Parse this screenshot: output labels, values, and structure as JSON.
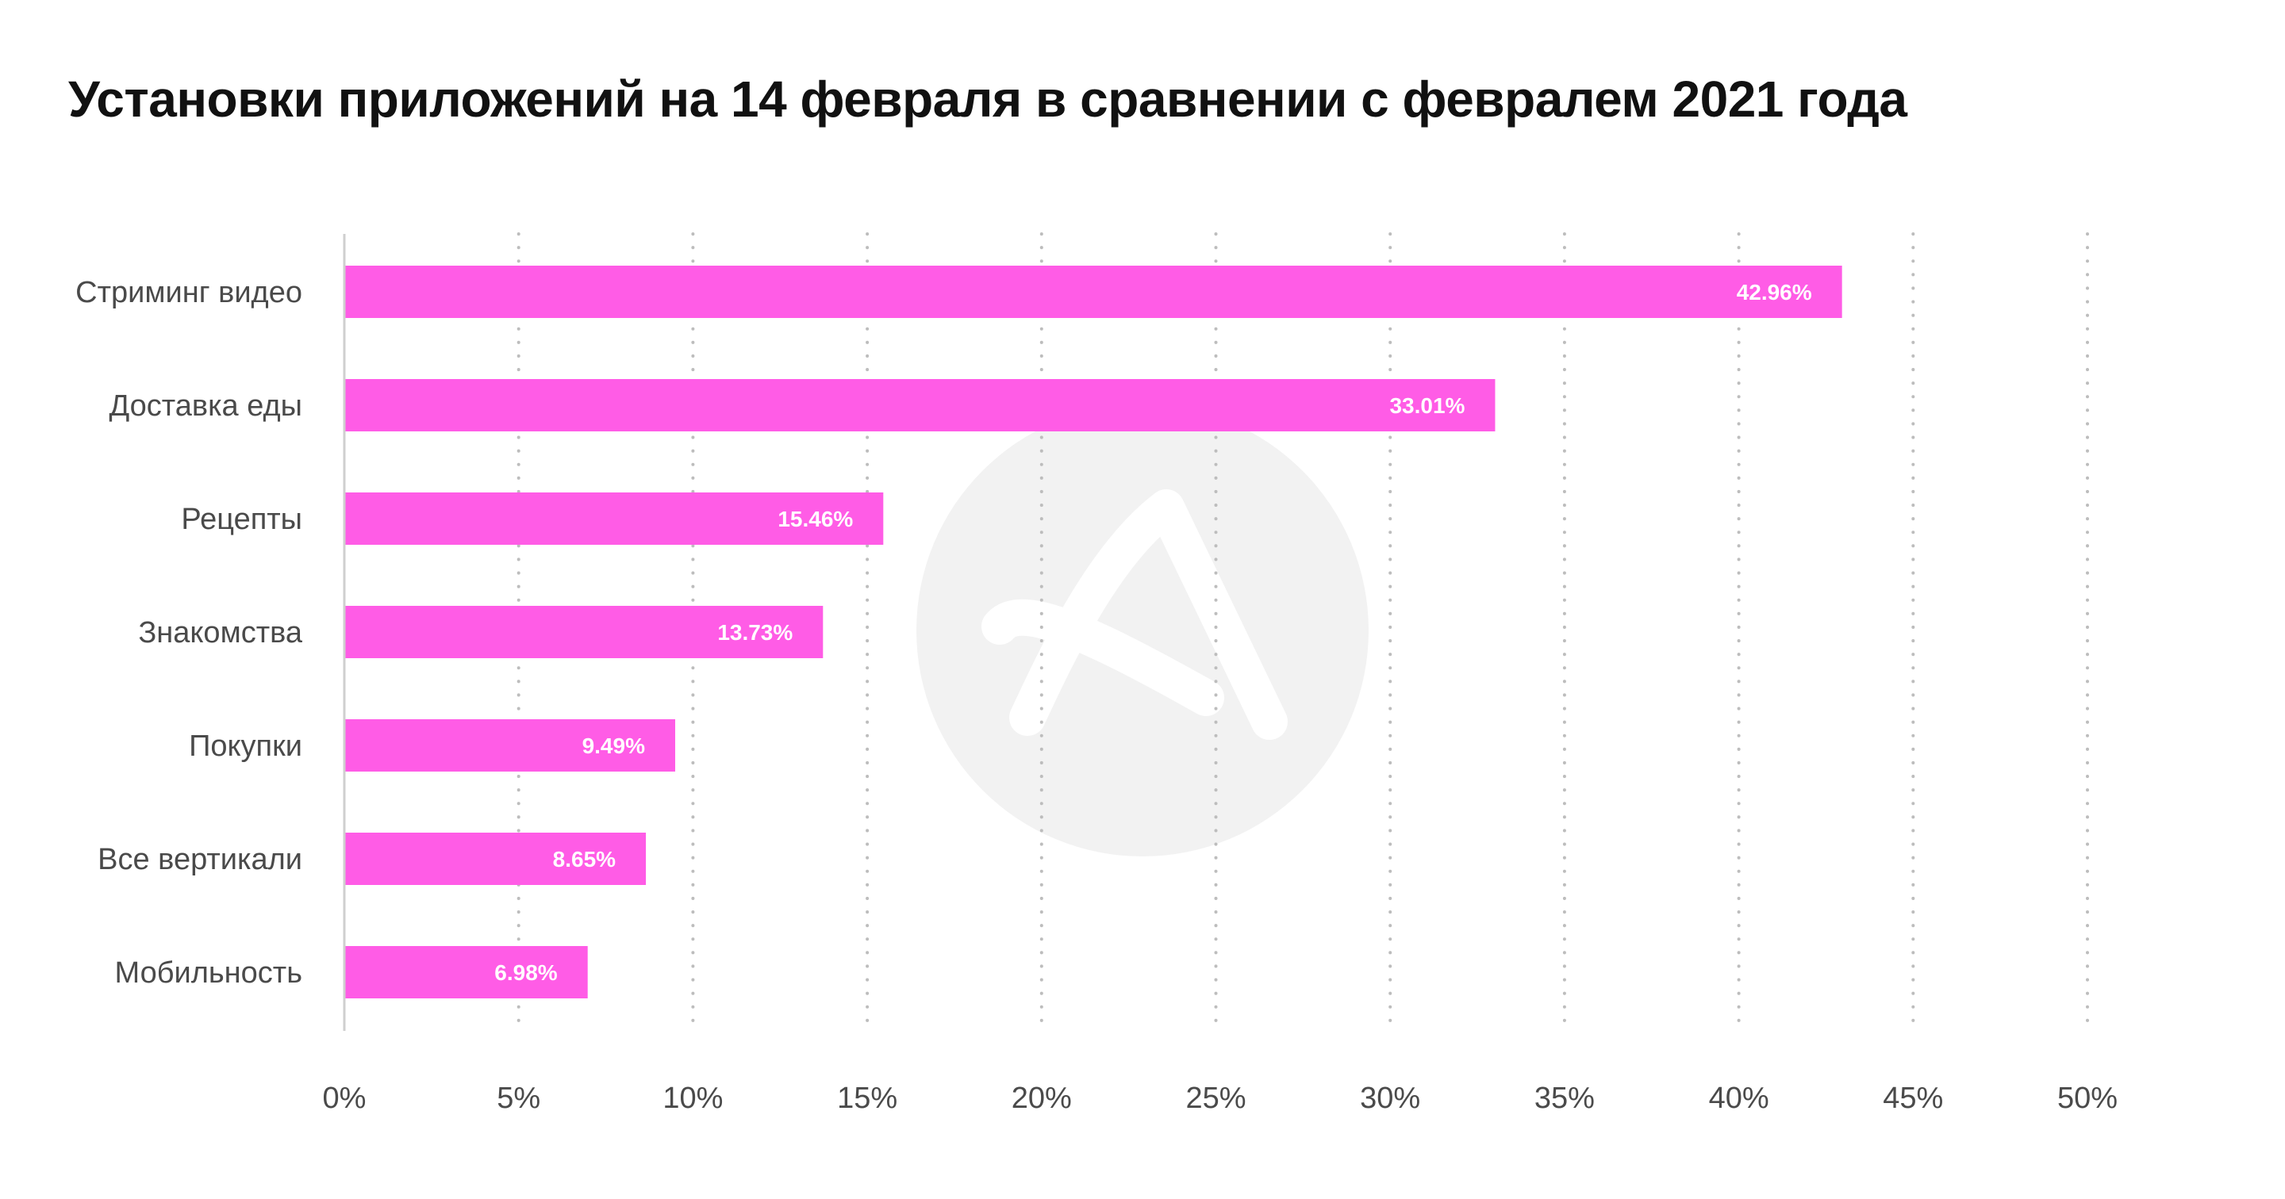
{
  "chart_data": {
    "type": "bar",
    "orientation": "horizontal",
    "title": "Установки приложений на 14 февраля в сравнении с февралем 2021 года",
    "categories": [
      "Стриминг видео",
      "Доставка еды",
      "Рецепты",
      "Знакомства",
      "Покупки",
      "Все вертикали",
      "Мобильность"
    ],
    "values": [
      42.96,
      33.01,
      15.46,
      13.73,
      9.49,
      8.65,
      6.98
    ],
    "value_labels": [
      "42.96%",
      "33.01%",
      "15.46%",
      "13.73%",
      "9.49%",
      "8.65%",
      "6.98%"
    ],
    "xlim": [
      0,
      50
    ],
    "x_ticks": [
      0,
      5,
      10,
      15,
      20,
      25,
      30,
      35,
      40,
      45,
      50
    ],
    "x_tick_labels": [
      "0%",
      "5%",
      "10%",
      "15%",
      "20%",
      "25%",
      "30%",
      "35%",
      "40%",
      "45%",
      "50%"
    ],
    "xlabel": "",
    "ylabel": "",
    "grid": true,
    "grid_style": "dotted",
    "bar_color": "#ff5ce6",
    "watermark": "logo"
  }
}
